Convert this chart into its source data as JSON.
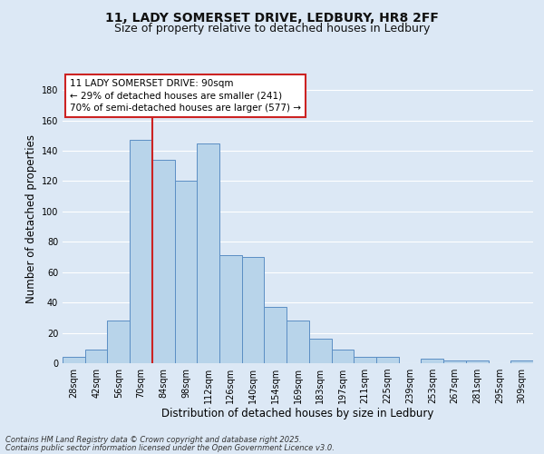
{
  "title1": "11, LADY SOMERSET DRIVE, LEDBURY, HR8 2FF",
  "title2": "Size of property relative to detached houses in Ledbury",
  "xlabel": "Distribution of detached houses by size in Ledbury",
  "ylabel": "Number of detached properties",
  "footer1": "Contains HM Land Registry data © Crown copyright and database right 2025.",
  "footer2": "Contains public sector information licensed under the Open Government Licence v3.0.",
  "categories": [
    "28sqm",
    "42sqm",
    "56sqm",
    "70sqm",
    "84sqm",
    "98sqm",
    "112sqm",
    "126sqm",
    "140sqm",
    "154sqm",
    "169sqm",
    "183sqm",
    "197sqm",
    "211sqm",
    "225sqm",
    "239sqm",
    "253sqm",
    "267sqm",
    "281sqm",
    "295sqm",
    "309sqm"
  ],
  "values": [
    4,
    9,
    28,
    147,
    134,
    120,
    145,
    71,
    70,
    37,
    28,
    16,
    9,
    4,
    4,
    0,
    3,
    2,
    2,
    0,
    2
  ],
  "bar_color": "#b8d4ea",
  "bar_edge_color": "#5b8ec4",
  "vline_color": "#cc2222",
  "vline_x": 4.0,
  "annotation_line1": "11 LADY SOMERSET DRIVE: 90sqm",
  "annotation_line2": "← 29% of detached houses are smaller (241)",
  "annotation_line3": "70% of semi-detached houses are larger (577) →",
  "box_edge_color": "#cc2222",
  "ylim": [
    0,
    190
  ],
  "yticks": [
    0,
    20,
    40,
    60,
    80,
    100,
    120,
    140,
    160,
    180
  ],
  "background_color": "#dce8f5",
  "plot_bg_color": "#dce8f5",
  "grid_color": "#ffffff",
  "title_fontsize": 10,
  "subtitle_fontsize": 9,
  "axis_label_fontsize": 8.5,
  "tick_fontsize": 7,
  "annotation_fontsize": 7.5,
  "footer_fontsize": 6
}
